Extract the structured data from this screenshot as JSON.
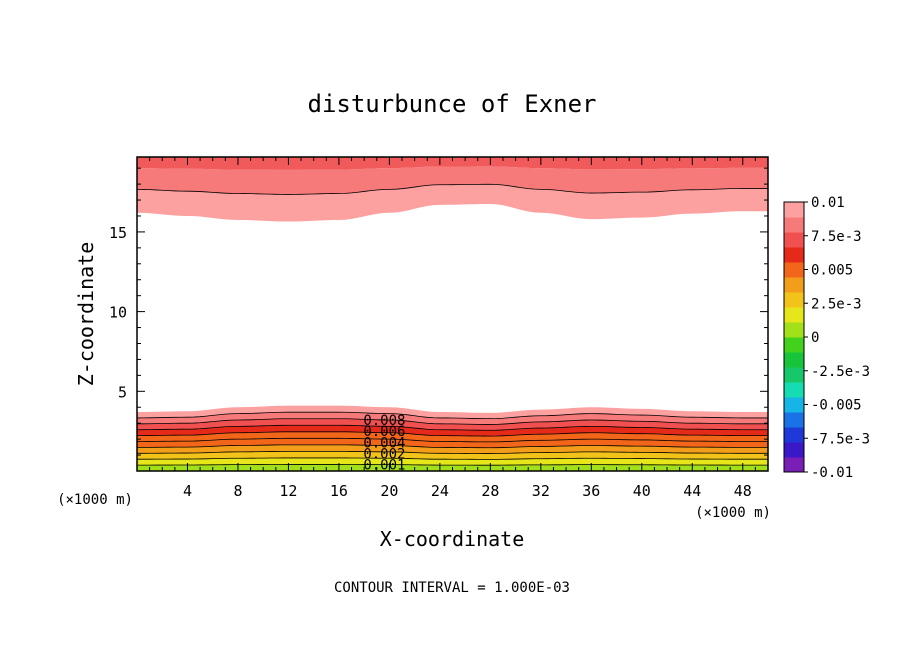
{
  "chart_data": {
    "type": "heatmap",
    "title": "disturbunce of Exner",
    "xlabel": "X-coordinate",
    "ylabel": "Z-coordinate",
    "x_unit_label": "(×1000 m)",
    "y_unit_label": "(×1000 m)",
    "footer": "CONTOUR INTERVAL = 1.000E-03",
    "xlim": [
      0,
      50
    ],
    "ylim": [
      0,
      19.7
    ],
    "x_ticks": [
      4,
      8,
      12,
      16,
      20,
      24,
      28,
      32,
      36,
      40,
      44,
      48
    ],
    "x_tick_labels": [
      "4",
      "8",
      "12",
      "16",
      "20",
      "24",
      "28",
      "32",
      "36",
      "40",
      "44",
      "48"
    ],
    "y_ticks": [
      5,
      10,
      15
    ],
    "y_tick_labels": [
      "5",
      "10",
      "15"
    ],
    "contour_interval": 0.001,
    "contour_labels": [
      {
        "text": "0.008",
        "x": 20,
        "y": 3.2
      },
      {
        "text": "0.006",
        "x": 20,
        "y": 2.5
      },
      {
        "text": "0.004",
        "x": 20,
        "y": 1.8
      },
      {
        "text": "0.002",
        "x": 20,
        "y": 1.1
      },
      {
        "text": "0.001",
        "x": 20,
        "y": 0.4
      }
    ],
    "colorbar": {
      "min": -0.01,
      "max": 0.01,
      "tick_labels": [
        "0.01",
        "7.5e-3",
        "0.005",
        "2.5e-3",
        "0",
        "-2.5e-3",
        "-0.005",
        "-7.5e-3",
        "-0.01"
      ],
      "colors": [
        "#7a1fb5",
        "#3a18c8",
        "#1f39d8",
        "#1a73e6",
        "#16b5e6",
        "#16dcb4",
        "#16c86a",
        "#18c43a",
        "#42d21c",
        "#a2e01a",
        "#e6e61a",
        "#f2c41a",
        "#f29e1a",
        "#f2661a",
        "#e62a1a",
        "#f05050",
        "#f77a7a",
        "#fca0a0"
      ]
    },
    "lower_band": {
      "x": [
        0,
        4,
        8,
        12,
        16,
        20,
        24,
        28,
        32,
        36,
        40,
        44,
        48,
        50
      ],
      "top_z": [
        3.7,
        3.75,
        4.0,
        4.1,
        4.1,
        4.0,
        3.7,
        3.65,
        3.85,
        4.0,
        3.9,
        3.75,
        3.7,
        3.7
      ],
      "value_at_top": 0.0095,
      "value_at_bottom": 0.0005
    },
    "upper_band": {
      "x": [
        0,
        4,
        8,
        12,
        16,
        20,
        24,
        28,
        32,
        36,
        40,
        44,
        48,
        50
      ],
      "bottom_z": [
        16.2,
        16.0,
        15.75,
        15.65,
        15.75,
        16.2,
        16.7,
        16.75,
        16.2,
        15.8,
        15.9,
        16.15,
        16.3,
        16.3
      ],
      "value_at_bottom": 0.0095,
      "value_at_top": 0.0098
    }
  }
}
